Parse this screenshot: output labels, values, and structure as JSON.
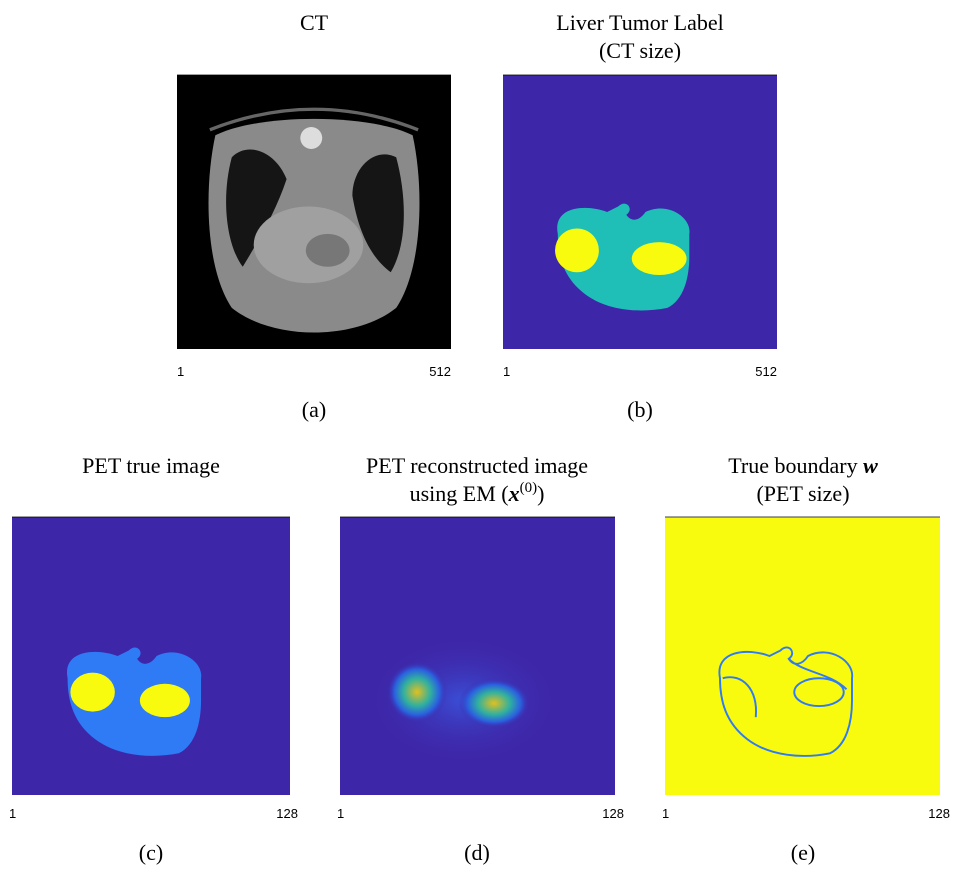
{
  "panels": [
    {
      "title_lines": [
        [
          "CT"
        ]
      ],
      "x_ticks": [
        1,
        512
      ],
      "caption": "(a)"
    },
    {
      "title_lines": [
        [
          "Liver Tumor Label"
        ],
        [
          "(CT size)"
        ]
      ],
      "x_ticks": [
        1,
        512
      ],
      "caption": "(b)"
    },
    {
      "title_lines": [
        [
          "PET true image"
        ]
      ],
      "x_ticks": [
        1,
        128
      ],
      "caption": "(c)"
    },
    {
      "title_lines": [
        [
          "PET reconstructed image"
        ],
        [
          "using EM (",
          "x",
          "(0)",
          ")"
        ]
      ],
      "x_ticks": [
        1,
        128
      ],
      "caption": "(d)"
    },
    {
      "title_lines": [
        [
          "True boundary ",
          "w"
        ],
        [
          "(PET size)"
        ]
      ],
      "x_ticks": [
        1,
        128
      ],
      "caption": "(e)"
    }
  ]
}
